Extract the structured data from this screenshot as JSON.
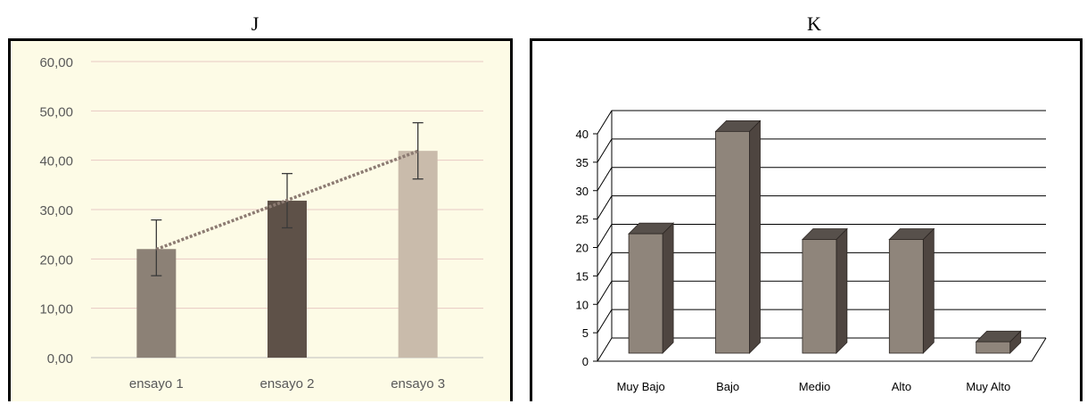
{
  "panels": {
    "left": "J",
    "right": "K"
  },
  "chart_data": [
    {
      "type": "bar",
      "categories": [
        "ensayo 1",
        "ensayo 2",
        "ensayo 3"
      ],
      "values": [
        22.0,
        31.8,
        41.9
      ],
      "error_bars": [
        {
          "low": 16.6,
          "high": 27.9
        },
        {
          "low": 26.3,
          "high": 37.3
        },
        {
          "low": 36.2,
          "high": 47.6
        }
      ],
      "trendline": "linear (dotted)",
      "yticks": [
        "0,00",
        "10,00",
        "20,00",
        "30,00",
        "40,00",
        "50,00",
        "60,00"
      ],
      "ylim": [
        0,
        60
      ],
      "grid": true,
      "colors": {
        "bars": [
          "#8c8176",
          "#5e5148",
          "#c9bbab"
        ],
        "grid": "#e8c9c4",
        "trend": "#8c7b72",
        "background": "#fdfbe6"
      }
    },
    {
      "type": "bar",
      "style": "3d",
      "categories": [
        "Muy Bajo",
        "Bajo",
        "Medio",
        "Alto",
        "Muy Alto"
      ],
      "values": [
        21,
        39,
        20,
        20,
        2
      ],
      "yticks": [
        "0",
        "5",
        "10",
        "15",
        "20",
        "25",
        "30",
        "35",
        "40"
      ],
      "ylim": [
        0,
        40
      ],
      "grid": true,
      "colors": {
        "front": "#8f857b",
        "side": "#4e4540",
        "top": "#57504b",
        "grid": "#000000"
      }
    }
  ]
}
